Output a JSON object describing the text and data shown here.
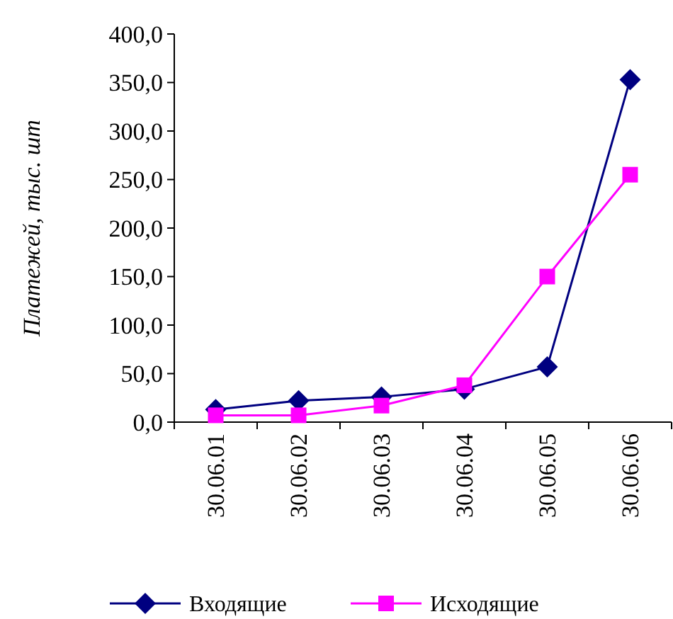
{
  "chart_data": {
    "type": "line",
    "ylabel": "Платежей, тыс. шт",
    "categories": [
      "30.06.01",
      "30.06.02",
      "30.06.03",
      "30.06.04",
      "30.06.05",
      "30.06.06"
    ],
    "series": [
      {
        "name": "Входящие",
        "color": "#000080",
        "marker": "diamond",
        "values": [
          13,
          22,
          26,
          34,
          57,
          353
        ]
      },
      {
        "name": "Исходящие",
        "color": "#ff00ff",
        "marker": "square",
        "values": [
          7,
          7,
          17,
          38,
          150,
          255
        ]
      }
    ],
    "ylim": [
      0,
      400
    ],
    "yticks": [
      {
        "value": 0,
        "label": "0,0"
      },
      {
        "value": 50,
        "label": "50,0"
      },
      {
        "value": 100,
        "label": "100,0"
      },
      {
        "value": 150,
        "label": "150,0"
      },
      {
        "value": 200,
        "label": "200,0"
      },
      {
        "value": 250,
        "label": "250,0"
      },
      {
        "value": 300,
        "label": "300,0"
      },
      {
        "value": 350,
        "label": "350,0"
      },
      {
        "value": 400,
        "label": "400,0"
      }
    ],
    "grid": false,
    "legend": "bottom",
    "line_style": "solid"
  }
}
